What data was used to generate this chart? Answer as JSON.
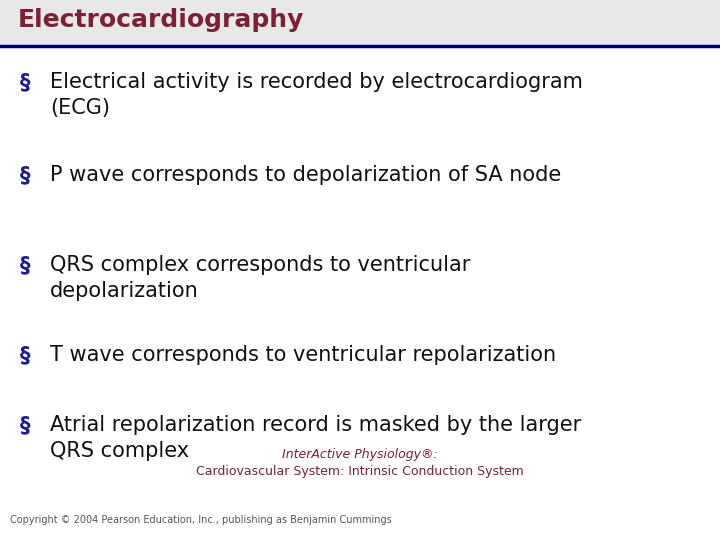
{
  "title": "Electrocardiography",
  "title_color": "#7B2035",
  "title_fontsize": 18,
  "divider_color": "#000080",
  "bullet_color": "#1C1C8C",
  "body_color": "#111111",
  "body_fontsize": 15,
  "background_color": "#ffffff",
  "bullets": [
    "Electrical activity is recorded by electrocardiogram\n(ECG)",
    "P wave corresponds to depolarization of SA node",
    "QRS complex corresponds to ventricular\ndepolarization",
    "T wave corresponds to ventricular repolarization",
    "Atrial repolarization record is masked by the larger\nQRS complex"
  ],
  "footer_line1": "InterActive Physiology®:",
  "footer_line2": "Cardiovascular System: Intrinsic Conduction System",
  "footer_color": "#7B2035",
  "footer_fontsize": 9,
  "copyright_text": "Copyright © 2004 Pearson Education, Inc., publishing as Benjamin Cummings",
  "copyright_color": "#555555",
  "copyright_fontsize": 7
}
